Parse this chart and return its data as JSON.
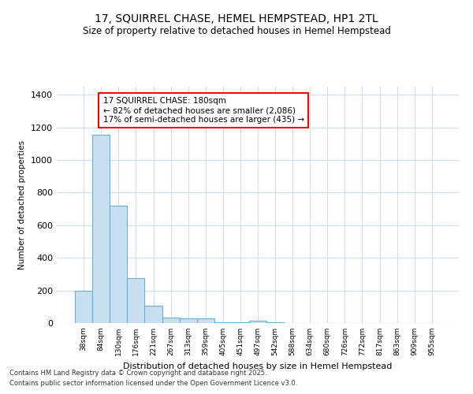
{
  "title_line1": "17, SQUIRREL CHASE, HEMEL HEMPSTEAD, HP1 2TL",
  "title_line2": "Size of property relative to detached houses in Hemel Hempstead",
  "xlabel": "Distribution of detached houses by size in Hemel Hempstead",
  "ylabel": "Number of detached properties",
  "annotation_line1": "17 SQUIRREL CHASE: 180sqm",
  "annotation_line2": "← 82% of detached houses are smaller (2,086)",
  "annotation_line3": "17% of semi-detached houses are larger (435) →",
  "bar_color": "#c8dff2",
  "bar_edge_color": "#6aaed6",
  "categories": [
    "38sqm",
    "84sqm",
    "130sqm",
    "176sqm",
    "221sqm",
    "267sqm",
    "313sqm",
    "359sqm",
    "405sqm",
    "451sqm",
    "497sqm",
    "542sqm",
    "588sqm",
    "634sqm",
    "680sqm",
    "726sqm",
    "772sqm",
    "817sqm",
    "863sqm",
    "909sqm",
    "955sqm"
  ],
  "values": [
    197,
    1155,
    718,
    274,
    107,
    33,
    27,
    27,
    3,
    3,
    14,
    3,
    0,
    0,
    0,
    0,
    0,
    0,
    0,
    0,
    0
  ],
  "ylim": [
    0,
    1450
  ],
  "yticks": [
    0,
    200,
    400,
    600,
    800,
    1000,
    1200,
    1400
  ],
  "background_color": "#ffffff",
  "grid_color": "#d0dff0",
  "footer_line1": "Contains HM Land Registry data © Crown copyright and database right 2025.",
  "footer_line2": "Contains public sector information licensed under the Open Government Licence v3.0."
}
